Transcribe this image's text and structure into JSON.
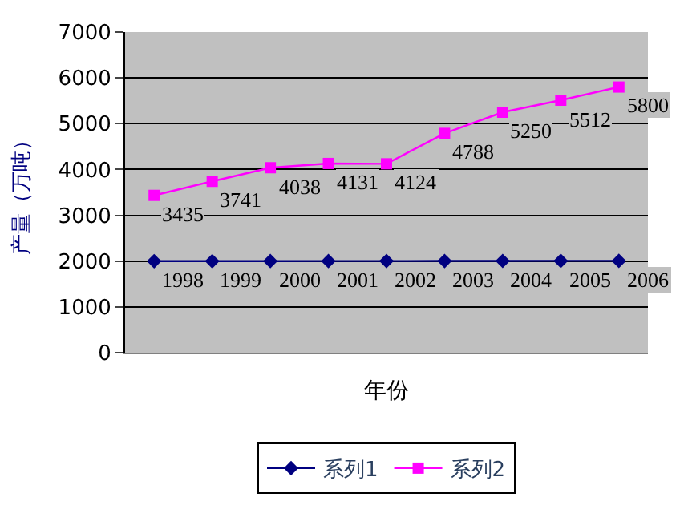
{
  "chart_data": {
    "type": "line",
    "xlabel": "年份",
    "ylabel": "产量（万吨）",
    "categories": [
      null,
      null,
      null,
      null,
      null,
      null,
      null,
      null,
      null
    ],
    "series": [
      {
        "name": "系列1",
        "color": "#000080",
        "marker": "diamond",
        "values": [
          1998,
          1999,
          2000,
          2001,
          2002,
          2003,
          2004,
          2005,
          2006
        ]
      },
      {
        "name": "系列2",
        "color": "#ff00ff",
        "marker": "square",
        "values": [
          3435,
          3741,
          4038,
          4131,
          4124,
          4788,
          5250,
          5512,
          5800
        ]
      }
    ],
    "ylim": [
      0,
      7000
    ],
    "yticks": [
      0,
      1000,
      2000,
      3000,
      4000,
      5000,
      6000,
      7000
    ],
    "grid": "y",
    "legend": "bottom",
    "data_labels": true
  }
}
